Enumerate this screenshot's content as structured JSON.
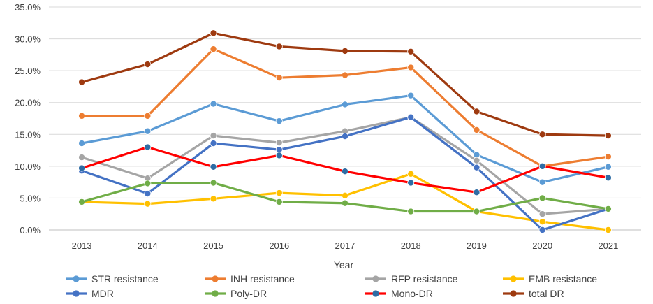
{
  "chart_data": {
    "type": "line",
    "title": "",
    "xlabel": "Year",
    "ylabel": "",
    "categories": [
      "2013",
      "2014",
      "2015",
      "2016",
      "2017",
      "2018",
      "2019",
      "2020",
      "2021"
    ],
    "ylim": [
      0,
      35
    ],
    "ytick_values": [
      0,
      5,
      10,
      15,
      20,
      25,
      30,
      35
    ],
    "ytick_labels": [
      "0.0%",
      "5.0%",
      "10.0%",
      "15.0%",
      "20.0%",
      "25.0%",
      "30.0%",
      "35.0%"
    ],
    "grid": true,
    "legend_position": "bottom",
    "series": [
      {
        "name": "STR resistance",
        "color": "#5b9bd5",
        "values": [
          13.6,
          15.5,
          19.8,
          17.1,
          19.7,
          21.1,
          11.8,
          7.5,
          9.9
        ]
      },
      {
        "name": "INH resistance",
        "color": "#ed7d31",
        "values": [
          17.9,
          17.9,
          28.4,
          23.9,
          24.3,
          25.5,
          15.7,
          10.0,
          11.5
        ]
      },
      {
        "name": "RFP resistance",
        "color": "#a5a5a5",
        "values": [
          11.4,
          8.1,
          14.8,
          13.7,
          15.5,
          17.7,
          10.9,
          2.5,
          3.3
        ]
      },
      {
        "name": "EMB resistance",
        "color": "#ffc000",
        "values": [
          4.4,
          4.1,
          4.9,
          5.8,
          5.4,
          8.8,
          2.9,
          1.3,
          0.0
        ]
      },
      {
        "name": "MDR",
        "color": "#4472c4",
        "values": [
          9.3,
          5.7,
          13.6,
          12.6,
          14.7,
          17.7,
          9.8,
          0.0,
          3.3
        ]
      },
      {
        "name": "Poly-DR",
        "color": "#70ad47",
        "values": [
          4.4,
          7.3,
          7.4,
          4.4,
          4.2,
          2.9,
          2.9,
          5.0,
          3.3
        ]
      },
      {
        "name": "Mono-DR",
        "color": "#ff0000",
        "marker_color": "#2e6ca4",
        "values": [
          9.7,
          13.0,
          9.9,
          11.7,
          9.2,
          7.4,
          5.9,
          10.0,
          8.2
        ]
      },
      {
        "name": "total DR",
        "color": "#9e3a10",
        "values": [
          23.2,
          26.0,
          30.9,
          28.8,
          28.1,
          28.0,
          18.6,
          15.0,
          14.8
        ]
      }
    ]
  }
}
